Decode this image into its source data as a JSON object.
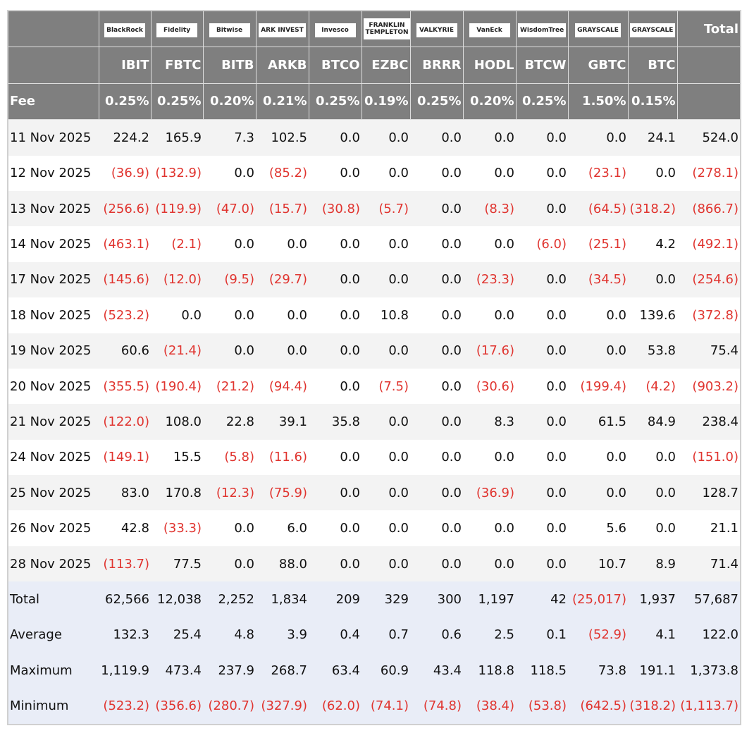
{
  "header": {
    "logos": [
      "BlackRock",
      "Fidelity",
      "Bitwise",
      "ARK INVEST",
      "Invesco",
      "FRANKLIN TEMPLETON",
      "VALKYRIE",
      "VanEck",
      "WisdomTree",
      "GRAYSCALE",
      "GRAYSCALE"
    ],
    "total": "Total",
    "tickers": [
      "IBIT",
      "FBTC",
      "BITB",
      "ARKB",
      "BTCO",
      "EZBC",
      "BRRR",
      "HODL",
      "BTCW",
      "GBTC",
      "BTC"
    ],
    "fee_label": "Fee",
    "fees": [
      "0.25%",
      "0.25%",
      "0.20%",
      "0.21%",
      "0.25%",
      "0.19%",
      "0.25%",
      "0.20%",
      "0.25%",
      "1.50%",
      "0.15%"
    ]
  },
  "table": {
    "rows": [
      {
        "label": "11 Nov 2025",
        "values": [
          "224.2",
          "165.9",
          "7.3",
          "102.5",
          "0.0",
          "0.0",
          "0.0",
          "0.0",
          "0.0",
          "0.0",
          "24.1",
          "524.0"
        ]
      },
      {
        "label": "12 Nov 2025",
        "values": [
          "(36.9)",
          "(132.9)",
          "0.0",
          "(85.2)",
          "0.0",
          "0.0",
          "0.0",
          "0.0",
          "0.0",
          "(23.1)",
          "0.0",
          "(278.1)"
        ]
      },
      {
        "label": "13 Nov 2025",
        "values": [
          "(256.6)",
          "(119.9)",
          "(47.0)",
          "(15.7)",
          "(30.8)",
          "(5.7)",
          "0.0",
          "(8.3)",
          "0.0",
          "(64.5)",
          "(318.2)",
          "(866.7)"
        ]
      },
      {
        "label": "14 Nov 2025",
        "values": [
          "(463.1)",
          "(2.1)",
          "0.0",
          "0.0",
          "0.0",
          "0.0",
          "0.0",
          "0.0",
          "(6.0)",
          "(25.1)",
          "4.2",
          "(492.1)"
        ]
      },
      {
        "label": "17 Nov 2025",
        "values": [
          "(145.6)",
          "(12.0)",
          "(9.5)",
          "(29.7)",
          "0.0",
          "0.0",
          "0.0",
          "(23.3)",
          "0.0",
          "(34.5)",
          "0.0",
          "(254.6)"
        ]
      },
      {
        "label": "18 Nov 2025",
        "values": [
          "(523.2)",
          "0.0",
          "0.0",
          "0.0",
          "0.0",
          "10.8",
          "0.0",
          "0.0",
          "0.0",
          "0.0",
          "139.6",
          "(372.8)"
        ]
      },
      {
        "label": "19 Nov 2025",
        "values": [
          "60.6",
          "(21.4)",
          "0.0",
          "0.0",
          "0.0",
          "0.0",
          "0.0",
          "(17.6)",
          "0.0",
          "0.0",
          "53.8",
          "75.4"
        ]
      },
      {
        "label": "20 Nov 2025",
        "values": [
          "(355.5)",
          "(190.4)",
          "(21.2)",
          "(94.4)",
          "0.0",
          "(7.5)",
          "0.0",
          "(30.6)",
          "0.0",
          "(199.4)",
          "(4.2)",
          "(903.2)"
        ]
      },
      {
        "label": "21 Nov 2025",
        "values": [
          "(122.0)",
          "108.0",
          "22.8",
          "39.1",
          "35.8",
          "0.0",
          "0.0",
          "8.3",
          "0.0",
          "61.5",
          "84.9",
          "238.4"
        ]
      },
      {
        "label": "24 Nov 2025",
        "values": [
          "(149.1)",
          "15.5",
          "(5.8)",
          "(11.6)",
          "0.0",
          "0.0",
          "0.0",
          "0.0",
          "0.0",
          "0.0",
          "0.0",
          "(151.0)"
        ]
      },
      {
        "label": "25 Nov 2025",
        "values": [
          "83.0",
          "170.8",
          "(12.3)",
          "(75.9)",
          "0.0",
          "0.0",
          "0.0",
          "(36.9)",
          "0.0",
          "0.0",
          "0.0",
          "128.7"
        ]
      },
      {
        "label": "26 Nov 2025",
        "values": [
          "42.8",
          "(33.3)",
          "0.0",
          "6.0",
          "0.0",
          "0.0",
          "0.0",
          "0.0",
          "0.0",
          "5.6",
          "0.0",
          "21.1"
        ]
      },
      {
        "label": "28 Nov 2025",
        "values": [
          "(113.7)",
          "77.5",
          "0.0",
          "88.0",
          "0.0",
          "0.0",
          "0.0",
          "0.0",
          "0.0",
          "10.7",
          "8.9",
          "71.4"
        ]
      }
    ],
    "summary": [
      {
        "label": "Total",
        "values": [
          "62,566",
          "12,038",
          "2,252",
          "1,834",
          "209",
          "329",
          "300",
          "1,197",
          "42",
          "(25,017)",
          "1,937",
          "57,687"
        ]
      },
      {
        "label": "Average",
        "values": [
          "132.3",
          "25.4",
          "4.8",
          "3.9",
          "0.4",
          "0.7",
          "0.6",
          "2.5",
          "0.1",
          "(52.9)",
          "4.1",
          "122.0"
        ]
      },
      {
        "label": "Maximum",
        "values": [
          "1,119.9",
          "473.4",
          "237.9",
          "268.7",
          "63.4",
          "60.9",
          "43.4",
          "118.8",
          "118.5",
          "73.8",
          "191.1",
          "1,373.8"
        ]
      },
      {
        "label": "Minimum",
        "values": [
          "(523.2)",
          "(356.6)",
          "(280.7)",
          "(327.9)",
          "(62.0)",
          "(74.1)",
          "(74.8)",
          "(38.4)",
          "(53.8)",
          "(642.5)",
          "(318.2)",
          "(1,113.7)"
        ]
      }
    ]
  }
}
